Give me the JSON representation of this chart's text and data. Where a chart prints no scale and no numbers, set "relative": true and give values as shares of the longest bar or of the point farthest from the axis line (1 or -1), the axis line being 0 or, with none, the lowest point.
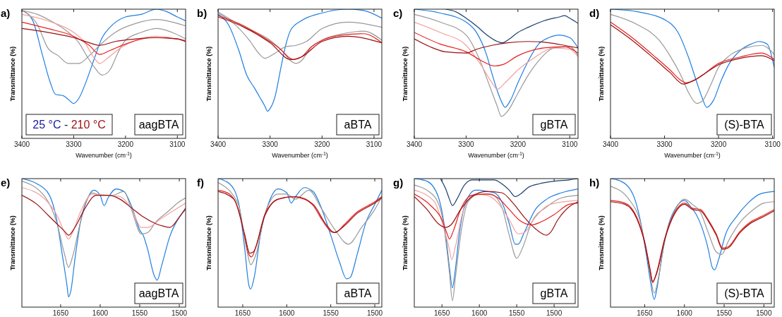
{
  "chart_data": [
    {
      "type": "line",
      "title": "a)",
      "xlabel": "Wavenumber (cm$^{-1}$)",
      "ylabel": "Transmittance (%)",
      "relative": true,
      "xlim": [
        3400,
        3084
      ],
      "xticks": [
        3400,
        3300,
        3200,
        3100
      ],
      "annotations": [
        "25 °C - 210 °C",
        "aagBTA"
      ],
      "series": [
        {
          "color": "#1f7fe0",
          "x": [
            3400,
            3380,
            3360,
            3345,
            3335,
            3320,
            3310,
            3300,
            3290,
            3275,
            3260,
            3245,
            3230,
            3200,
            3170,
            3140,
            3120,
            3100,
            3084
          ],
          "values": [
            0.99,
            0.92,
            0.64,
            0.43,
            0.34,
            0.33,
            0.3,
            0.27,
            0.31,
            0.45,
            0.62,
            0.78,
            0.86,
            0.94,
            0.96,
            1.0,
            0.98,
            0.94,
            0.91
          ]
        },
        {
          "color": "#999999",
          "x": [
            3400,
            3370,
            3350,
            3330,
            3310,
            3290,
            3270,
            3250,
            3220,
            3180,
            3140,
            3100,
            3084
          ],
          "values": [
            0.99,
            0.88,
            0.7,
            0.64,
            0.58,
            0.58,
            0.64,
            0.72,
            0.82,
            0.89,
            0.92,
            0.89,
            0.87
          ]
        },
        {
          "color": "#999999",
          "x": [
            3400,
            3370,
            3340,
            3310,
            3290,
            3275,
            3260,
            3245,
            3230,
            3215,
            3200,
            3170,
            3140,
            3110,
            3084
          ],
          "values": [
            0.99,
            0.96,
            0.9,
            0.82,
            0.74,
            0.64,
            0.55,
            0.49,
            0.53,
            0.66,
            0.76,
            0.82,
            0.85,
            0.82,
            0.77
          ]
        },
        {
          "color": "#f4a0a0",
          "x": [
            3400,
            3350,
            3300,
            3280,
            3260,
            3250,
            3235,
            3210,
            3180,
            3140,
            3100,
            3084
          ],
          "values": [
            0.96,
            0.91,
            0.82,
            0.75,
            0.62,
            0.58,
            0.62,
            0.7,
            0.76,
            0.79,
            0.77,
            0.76
          ]
        },
        {
          "color": "#e8201e",
          "x": [
            3400,
            3350,
            3300,
            3270,
            3250,
            3230,
            3200,
            3150,
            3100,
            3084
          ],
          "values": [
            0.9,
            0.85,
            0.79,
            0.72,
            0.65,
            0.68,
            0.73,
            0.78,
            0.77,
            0.75
          ]
        },
        {
          "color": "#9b1010",
          "x": [
            3400,
            3350,
            3300,
            3270,
            3250,
            3220,
            3180,
            3140,
            3100,
            3084
          ],
          "values": [
            0.85,
            0.82,
            0.78,
            0.74,
            0.72,
            0.75,
            0.77,
            0.78,
            0.77,
            0.75
          ]
        }
      ]
    },
    {
      "type": "line",
      "title": "b)",
      "xlabel": "Wavenumber (cm$^{-1}$)",
      "ylabel": "Transmittance (%)",
      "relative": true,
      "xlim": [
        3400,
        3085
      ],
      "xticks": [
        3400,
        3300,
        3200,
        3100
      ],
      "annotations": [
        "aBTA"
      ],
      "series": [
        {
          "color": "#1f7fe0",
          "x": [
            3400,
            3380,
            3360,
            3345,
            3330,
            3320,
            3310,
            3305,
            3300,
            3290,
            3280,
            3270,
            3260,
            3240,
            3200,
            3150,
            3120,
            3085
          ],
          "values": [
            0.96,
            0.88,
            0.68,
            0.49,
            0.39,
            0.32,
            0.25,
            0.21,
            0.23,
            0.33,
            0.53,
            0.72,
            0.84,
            0.91,
            0.97,
            1.0,
            0.99,
            0.93
          ]
        },
        {
          "color": "#999999",
          "x": [
            3400,
            3370,
            3340,
            3320,
            3310,
            3290,
            3270,
            3250,
            3230,
            3200,
            3150,
            3085
          ],
          "values": [
            0.97,
            0.89,
            0.76,
            0.65,
            0.62,
            0.66,
            0.71,
            0.72,
            0.75,
            0.85,
            0.9,
            0.86
          ]
        },
        {
          "color": "#999999",
          "x": [
            3400,
            3350,
            3300,
            3275,
            3260,
            3250,
            3240,
            3220,
            3200,
            3160,
            3120,
            3085
          ],
          "values": [
            0.98,
            0.86,
            0.76,
            0.67,
            0.6,
            0.58,
            0.6,
            0.71,
            0.76,
            0.81,
            0.83,
            0.76
          ]
        },
        {
          "color": "#e8201e",
          "x": [
            3400,
            3350,
            3300,
            3280,
            3265,
            3255,
            3240,
            3220,
            3200,
            3160,
            3120,
            3085
          ],
          "values": [
            0.95,
            0.87,
            0.75,
            0.69,
            0.63,
            0.61,
            0.63,
            0.71,
            0.76,
            0.8,
            0.81,
            0.74
          ]
        },
        {
          "color": "#9b1010",
          "x": [
            3400,
            3350,
            3300,
            3260,
            3240,
            3200,
            3150,
            3085
          ],
          "values": [
            0.94,
            0.86,
            0.74,
            0.61,
            0.63,
            0.75,
            0.79,
            0.74
          ]
        }
      ]
    },
    {
      "type": "line",
      "title": "c)",
      "xlabel": "Wavenumber (cm$^{-1}$)",
      "ylabel": "Transmittance (%)",
      "relative": true,
      "xlim": [
        3400,
        3084
      ],
      "xticks": [
        3400,
        3300,
        3200,
        3100
      ],
      "annotations": [
        "gBTA"
      ],
      "series": [
        {
          "color": "#1a3f6e",
          "x": [
            3340,
            3320,
            3300,
            3280,
            3260,
            3240,
            3230,
            3220,
            3200,
            3180,
            3150,
            3120,
            3110,
            3100,
            3084
          ],
          "values": [
            1.0,
            0.98,
            0.93,
            0.87,
            0.8,
            0.75,
            0.74,
            0.76,
            0.82,
            0.86,
            0.91,
            0.94,
            0.95,
            0.93,
            0.89
          ]
        },
        {
          "color": "#1f7fe0",
          "x": [
            3400,
            3350,
            3300,
            3280,
            3260,
            3250,
            3240,
            3230,
            3225,
            3215,
            3200,
            3180,
            3160,
            3140,
            3120,
            3100,
            3084
          ],
          "values": [
            1.0,
            0.97,
            0.9,
            0.82,
            0.64,
            0.5,
            0.37,
            0.27,
            0.24,
            0.29,
            0.43,
            0.6,
            0.73,
            0.78,
            0.8,
            0.78,
            0.7
          ]
        },
        {
          "color": "#999999",
          "x": [
            3400,
            3350,
            3300,
            3275,
            3255,
            3240,
            3232,
            3220,
            3200,
            3180,
            3160,
            3130,
            3100,
            3084
          ],
          "values": [
            0.96,
            0.9,
            0.8,
            0.62,
            0.41,
            0.25,
            0.17,
            0.21,
            0.35,
            0.49,
            0.6,
            0.7,
            0.71,
            0.64
          ]
        },
        {
          "color": "#f4a0a0",
          "x": [
            3400,
            3350,
            3300,
            3270,
            3250,
            3240,
            3225,
            3200,
            3170,
            3130,
            3100,
            3084
          ],
          "values": [
            0.9,
            0.82,
            0.72,
            0.56,
            0.43,
            0.38,
            0.43,
            0.53,
            0.62,
            0.7,
            0.69,
            0.63
          ]
        },
        {
          "color": "#e8201e",
          "x": [
            3400,
            3350,
            3300,
            3270,
            3245,
            3230,
            3200,
            3150,
            3110,
            3084
          ],
          "values": [
            0.82,
            0.73,
            0.67,
            0.6,
            0.56,
            0.57,
            0.64,
            0.7,
            0.71,
            0.66
          ]
        },
        {
          "color": "#9b1010",
          "x": [
            3400,
            3370,
            3340,
            3300,
            3280,
            3250,
            3220,
            3180,
            3140,
            3110,
            3084
          ],
          "values": [
            0.77,
            0.71,
            0.67,
            0.66,
            0.69,
            0.72,
            0.74,
            0.75,
            0.74,
            0.72,
            0.7
          ]
        }
      ]
    },
    {
      "type": "line",
      "title": "d)",
      "xlabel": "Wavenumber (cm$^{-1}$)",
      "ylabel": "Transmittance (%)",
      "relative": true,
      "xlim": [
        3400,
        3097
      ],
      "xticks": [
        3400,
        3300,
        3200,
        3100
      ],
      "annotations": [
        "(S)-BTA"
      ],
      "series": [
        {
          "color": "#1f7fe0",
          "x": [
            3400,
            3350,
            3300,
            3275,
            3255,
            3240,
            3230,
            3222,
            3210,
            3195,
            3180,
            3160,
            3140,
            3125,
            3110,
            3097
          ],
          "values": [
            1.0,
            0.98,
            0.92,
            0.82,
            0.62,
            0.43,
            0.31,
            0.24,
            0.29,
            0.45,
            0.58,
            0.68,
            0.73,
            0.75,
            0.73,
            0.55
          ]
        },
        {
          "color": "#999999",
          "x": [
            3400,
            3350,
            3310,
            3290,
            3270,
            3255,
            3240,
            3230,
            3215,
            3200,
            3180,
            3150,
            3120,
            3097
          ],
          "values": [
            0.96,
            0.88,
            0.76,
            0.64,
            0.49,
            0.35,
            0.27,
            0.29,
            0.41,
            0.55,
            0.64,
            0.7,
            0.72,
            0.65
          ]
        },
        {
          "color": "#e8201e",
          "x": [
            3400,
            3360,
            3320,
            3290,
            3270,
            3260,
            3245,
            3230,
            3200,
            3160,
            3120,
            3097
          ],
          "values": [
            0.9,
            0.78,
            0.64,
            0.53,
            0.45,
            0.43,
            0.45,
            0.49,
            0.58,
            0.63,
            0.66,
            0.61
          ]
        },
        {
          "color": "#9b1010",
          "x": [
            3400,
            3360,
            3320,
            3290,
            3265,
            3245,
            3200,
            3160,
            3120,
            3097
          ],
          "values": [
            0.88,
            0.76,
            0.62,
            0.51,
            0.42,
            0.45,
            0.57,
            0.62,
            0.64,
            0.6
          ]
        }
      ]
    },
    {
      "type": "line",
      "title": "e)",
      "ylabel": "Transmittance (%)",
      "relative": true,
      "xlim": [
        1699,
        1492
      ],
      "xticks": [
        1650,
        1600,
        1550,
        1500
      ],
      "annotations": [
        "aagBTA"
      ],
      "series": [
        {
          "color": "#1f7fe0",
          "x": [
            1699,
            1680,
            1665,
            1655,
            1648,
            1642,
            1640,
            1637,
            1632,
            1625,
            1615,
            1608,
            1600,
            1595,
            1590,
            1580,
            1570,
            1560,
            1550,
            1545,
            1540,
            1532,
            1528,
            1522,
            1512,
            1500,
            1492
          ],
          "values": [
            1.0,
            0.96,
            0.88,
            0.68,
            0.41,
            0.17,
            0.08,
            0.13,
            0.37,
            0.66,
            0.86,
            0.91,
            0.87,
            0.79,
            0.85,
            0.92,
            0.9,
            0.78,
            0.6,
            0.55,
            0.45,
            0.25,
            0.21,
            0.33,
            0.55,
            0.7,
            0.76
          ]
        },
        {
          "color": "#999999",
          "x": [
            1699,
            1670,
            1655,
            1645,
            1640,
            1635,
            1625,
            1610,
            1600,
            1585,
            1570,
            1560,
            1548,
            1540,
            1530,
            1515,
            1500,
            1492
          ],
          "values": [
            0.98,
            0.86,
            0.66,
            0.41,
            0.31,
            0.39,
            0.66,
            0.89,
            0.87,
            0.87,
            0.9,
            0.75,
            0.57,
            0.58,
            0.66,
            0.74,
            0.82,
            0.85
          ]
        },
        {
          "color": "#f4a0a0",
          "x": [
            1699,
            1670,
            1655,
            1645,
            1640,
            1635,
            1625,
            1610,
            1590,
            1575,
            1560,
            1548,
            1540,
            1525,
            1510,
            1492
          ],
          "values": [
            0.93,
            0.84,
            0.72,
            0.58,
            0.53,
            0.58,
            0.74,
            0.88,
            0.87,
            0.86,
            0.76,
            0.62,
            0.62,
            0.68,
            0.74,
            0.81
          ]
        },
        {
          "color": "#9b1010",
          "x": [
            1699,
            1680,
            1665,
            1655,
            1645,
            1640,
            1632,
            1620,
            1605,
            1590,
            1575,
            1560,
            1545,
            1530,
            1520,
            1512,
            1500,
            1492
          ],
          "values": [
            0.87,
            0.8,
            0.71,
            0.65,
            0.59,
            0.56,
            0.62,
            0.76,
            0.87,
            0.87,
            0.84,
            0.77,
            0.7,
            0.65,
            0.63,
            0.62,
            0.7,
            0.77
          ]
        }
      ]
    },
    {
      "type": "line",
      "title": "f)",
      "ylabel": "Transmittance (%)",
      "relative": true,
      "xlim": [
        1678,
        1492
      ],
      "xticks": [
        1650,
        1600,
        1550,
        1500
      ],
      "annotations": [
        "aBTA"
      ],
      "series": [
        {
          "color": "#1f7fe0",
          "x": [
            1678,
            1665,
            1655,
            1648,
            1643,
            1641,
            1637,
            1630,
            1620,
            1610,
            1600,
            1595,
            1590,
            1580,
            1570,
            1560,
            1550,
            1540,
            1532,
            1528,
            1520,
            1510,
            1500,
            1492
          ],
          "values": [
            1.0,
            0.96,
            0.82,
            0.47,
            0.17,
            0.14,
            0.23,
            0.56,
            0.82,
            0.92,
            0.89,
            0.81,
            0.86,
            0.93,
            0.9,
            0.76,
            0.56,
            0.35,
            0.22,
            0.23,
            0.41,
            0.66,
            0.8,
            0.91
          ]
        },
        {
          "color": "#999999",
          "x": [
            1678,
            1655,
            1645,
            1641,
            1635,
            1625,
            1610,
            1600,
            1590,
            1575,
            1560,
            1545,
            1530,
            1515,
            1500,
            1492
          ],
          "values": [
            0.97,
            0.8,
            0.43,
            0.33,
            0.41,
            0.72,
            0.88,
            0.88,
            0.84,
            0.91,
            0.76,
            0.6,
            0.49,
            0.62,
            0.76,
            0.86
          ]
        },
        {
          "color": "#e8201e",
          "x": [
            1678,
            1665,
            1655,
            1648,
            1643,
            1640,
            1635,
            1625,
            1610,
            1595,
            1580,
            1570,
            1560,
            1550,
            1545,
            1535,
            1520,
            1500,
            1492
          ],
          "values": [
            0.91,
            0.88,
            0.76,
            0.56,
            0.41,
            0.39,
            0.47,
            0.72,
            0.84,
            0.86,
            0.84,
            0.79,
            0.68,
            0.59,
            0.58,
            0.64,
            0.74,
            0.82,
            0.86
          ]
        },
        {
          "color": "#9b1010",
          "x": [
            1678,
            1660,
            1648,
            1642,
            1638,
            1625,
            1610,
            1590,
            1570,
            1555,
            1546,
            1535,
            1520,
            1500,
            1492
          ],
          "values": [
            0.9,
            0.84,
            0.57,
            0.42,
            0.43,
            0.71,
            0.84,
            0.86,
            0.8,
            0.64,
            0.58,
            0.63,
            0.73,
            0.81,
            0.85
          ]
        }
      ]
    },
    {
      "type": "line",
      "title": "g)",
      "ylabel": "Transmittance (%)",
      "relative": true,
      "xlim": [
        1687,
        1468
      ],
      "xticks": [
        1650,
        1600,
        1550,
        1500
      ],
      "annotations": [
        "gBTA"
      ],
      "series": [
        {
          "color": "#1a3f6e",
          "x": [
            1652,
            1645,
            1640,
            1636,
            1630,
            1620,
            1610,
            1600,
            1590,
            1580,
            1570,
            1560,
            1552,
            1545,
            1535,
            1520,
            1500,
            1480,
            1468
          ],
          "values": [
            1.0,
            0.92,
            0.84,
            0.79,
            0.84,
            0.95,
            0.99,
            0.99,
            0.99,
            0.99,
            0.96,
            0.91,
            0.86,
            0.88,
            0.93,
            0.96,
            0.98,
            0.99,
            1.0
          ]
        },
        {
          "color": "#1f7fe0",
          "x": [
            1687,
            1670,
            1655,
            1645,
            1640,
            1636,
            1633,
            1627,
            1618,
            1605,
            1600,
            1590,
            1580,
            1570,
            1560,
            1552,
            1548,
            1540,
            1525,
            1510,
            1490,
            1468
          ],
          "values": [
            1.0,
            0.98,
            0.86,
            0.56,
            0.31,
            0.15,
            0.25,
            0.56,
            0.82,
            0.91,
            0.91,
            0.9,
            0.89,
            0.82,
            0.65,
            0.49,
            0.49,
            0.58,
            0.76,
            0.84,
            0.89,
            0.92
          ]
        },
        {
          "color": "#999999",
          "x": [
            1687,
            1660,
            1648,
            1640,
            1636,
            1632,
            1625,
            1615,
            1600,
            1585,
            1570,
            1560,
            1550,
            1543,
            1530,
            1510,
            1490,
            1468
          ],
          "values": [
            0.95,
            0.86,
            0.65,
            0.27,
            0.05,
            0.23,
            0.56,
            0.82,
            0.88,
            0.88,
            0.78,
            0.56,
            0.38,
            0.45,
            0.66,
            0.78,
            0.85,
            0.87
          ]
        },
        {
          "color": "#f4a0a0",
          "x": [
            1687,
            1660,
            1648,
            1640,
            1637,
            1632,
            1622,
            1605,
            1590,
            1575,
            1560,
            1548,
            1540,
            1525,
            1505,
            1468
          ],
          "values": [
            0.91,
            0.82,
            0.62,
            0.45,
            0.37,
            0.47,
            0.74,
            0.88,
            0.87,
            0.81,
            0.68,
            0.57,
            0.58,
            0.7,
            0.8,
            0.83
          ]
        },
        {
          "color": "#e8201e",
          "x": [
            1687,
            1665,
            1650,
            1643,
            1640,
            1635,
            1625,
            1610,
            1590,
            1575,
            1560,
            1545,
            1530,
            1515,
            1500,
            1480,
            1468
          ],
          "values": [
            0.88,
            0.79,
            0.68,
            0.57,
            0.53,
            0.59,
            0.76,
            0.87,
            0.88,
            0.85,
            0.76,
            0.67,
            0.64,
            0.67,
            0.72,
            0.8,
            0.81
          ]
        },
        {
          "color": "#9b1010",
          "x": [
            1687,
            1670,
            1655,
            1645,
            1638,
            1625,
            1610,
            1590,
            1570,
            1555,
            1540,
            1525,
            1510,
            1505,
            1495,
            1480,
            1468
          ],
          "values": [
            0.86,
            0.76,
            0.65,
            0.62,
            0.64,
            0.76,
            0.86,
            0.9,
            0.89,
            0.81,
            0.7,
            0.61,
            0.56,
            0.58,
            0.68,
            0.78,
            0.82
          ]
        }
      ]
    },
    {
      "type": "line",
      "title": "h)",
      "ylabel": "Transmittance (%)",
      "relative": true,
      "xlim": [
        1693,
        1487
      ],
      "xticks": [
        1650,
        1600,
        1550,
        1500
      ],
      "annotations": [
        "(S)-BTA"
      ],
      "series": [
        {
          "color": "#1f7fe0",
          "x": [
            1693,
            1680,
            1665,
            1655,
            1648,
            1643,
            1638,
            1635,
            1628,
            1620,
            1610,
            1600,
            1592,
            1585,
            1578,
            1570,
            1565,
            1562,
            1557,
            1548,
            1535,
            1520,
            1505,
            1487
          ],
          "values": [
            1.0,
            0.98,
            0.88,
            0.66,
            0.41,
            0.21,
            0.06,
            0.13,
            0.41,
            0.64,
            0.78,
            0.83,
            0.78,
            0.72,
            0.62,
            0.45,
            0.31,
            0.29,
            0.37,
            0.57,
            0.7,
            0.81,
            0.88,
            0.9
          ]
        },
        {
          "color": "#999999",
          "x": [
            1693,
            1670,
            1655,
            1645,
            1638,
            1632,
            1625,
            1612,
            1600,
            1590,
            1580,
            1570,
            1560,
            1553,
            1545,
            1530,
            1515,
            1500,
            1487
          ],
          "values": [
            0.94,
            0.84,
            0.65,
            0.33,
            0.11,
            0.25,
            0.51,
            0.75,
            0.84,
            0.8,
            0.74,
            0.58,
            0.43,
            0.41,
            0.51,
            0.66,
            0.75,
            0.81,
            0.82
          ]
        },
        {
          "color": "#e8201e",
          "x": [
            1693,
            1675,
            1660,
            1650,
            1643,
            1640,
            1635,
            1625,
            1612,
            1600,
            1590,
            1580,
            1570,
            1560,
            1552,
            1545,
            1530,
            1515,
            1505,
            1487
          ],
          "values": [
            0.83,
            0.81,
            0.7,
            0.51,
            0.29,
            0.19,
            0.27,
            0.53,
            0.74,
            0.81,
            0.77,
            0.76,
            0.68,
            0.57,
            0.46,
            0.47,
            0.59,
            0.67,
            0.7,
            0.76
          ]
        },
        {
          "color": "#9b1010",
          "x": [
            1693,
            1675,
            1660,
            1650,
            1643,
            1640,
            1635,
            1625,
            1612,
            1600,
            1590,
            1580,
            1570,
            1560,
            1552,
            1545,
            1530,
            1515,
            1505,
            1487
          ],
          "values": [
            0.82,
            0.8,
            0.69,
            0.5,
            0.28,
            0.2,
            0.26,
            0.52,
            0.73,
            0.8,
            0.76,
            0.75,
            0.67,
            0.56,
            0.45,
            0.46,
            0.58,
            0.66,
            0.69,
            0.75
          ]
        }
      ]
    }
  ]
}
